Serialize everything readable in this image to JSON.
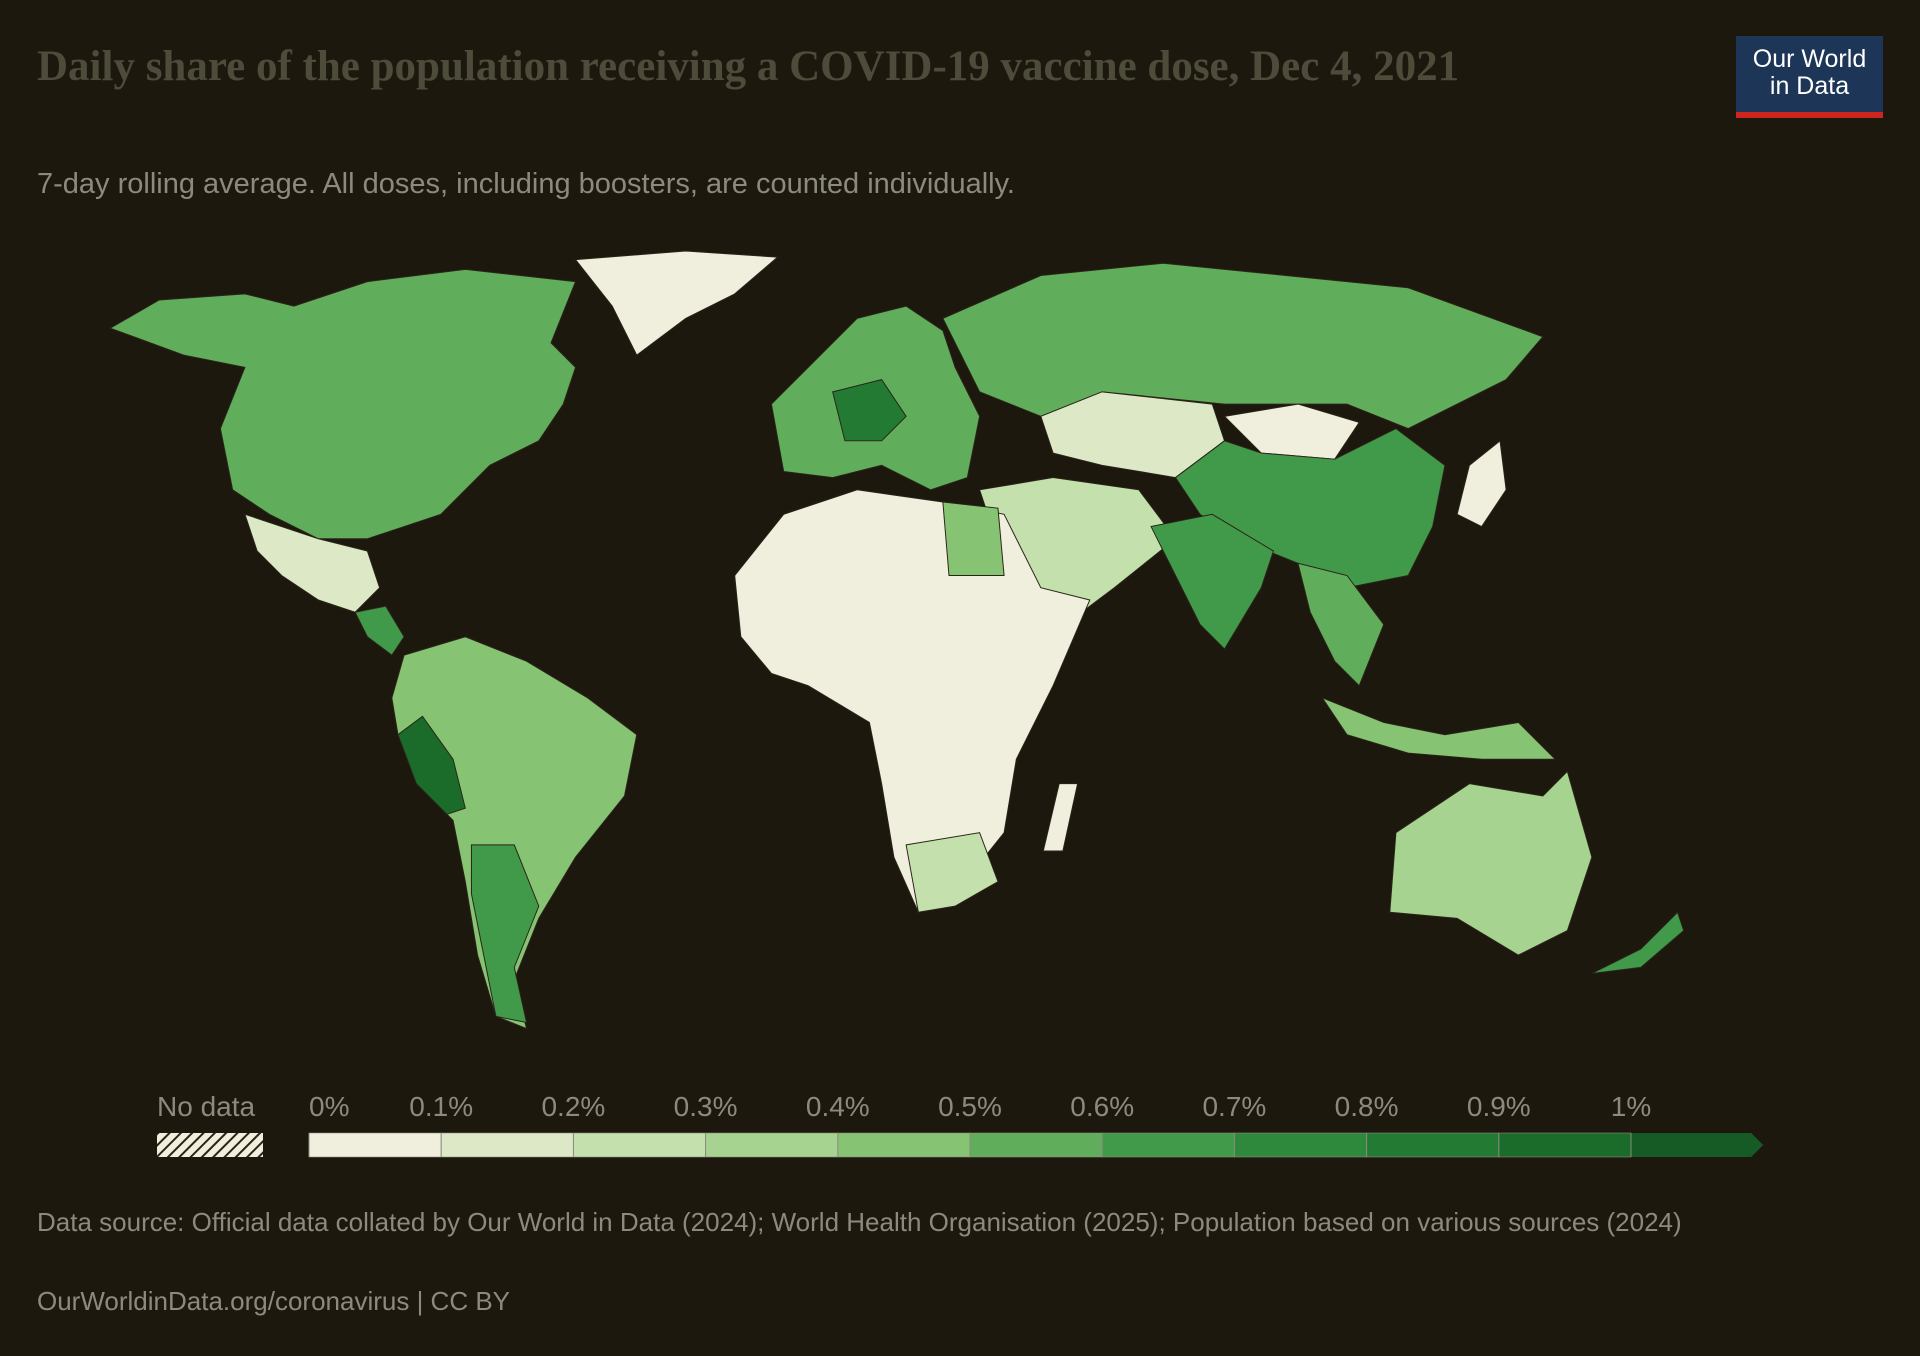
{
  "title": "Daily share of the population receiving a COVID-19 vaccine dose, Dec 4, 2021",
  "subtitle": "7-day rolling average. All doses, including boosters, are counted individually.",
  "logo": {
    "line1": "Our World",
    "line2": "in Data"
  },
  "legend": {
    "no_data_label": "No data",
    "ticks": [
      {
        "value": 0,
        "label": "0%"
      },
      {
        "value": 0.1,
        "label": "0.1%"
      },
      {
        "value": 0.2,
        "label": "0.2%"
      },
      {
        "value": 0.3,
        "label": "0.3%"
      },
      {
        "value": 0.4,
        "label": "0.4%"
      },
      {
        "value": 0.5,
        "label": "0.5%"
      },
      {
        "value": 0.6,
        "label": "0.6%"
      },
      {
        "value": 0.7,
        "label": "0.7%"
      },
      {
        "value": 0.8,
        "label": "0.8%"
      },
      {
        "value": 0.9,
        "label": "0.9%"
      },
      {
        "value": 1,
        "label": "1%"
      }
    ],
    "colors": [
      "#f0eedc",
      "#dde8c6",
      "#c4e0ad",
      "#a6d38f",
      "#86c473",
      "#60ae5c",
      "#41994a",
      "#2e893d",
      "#237a33",
      "#1b6b2b",
      "#165b25"
    ]
  },
  "source": "Data source: Official data collated by Our World in Data (2024); World Health Organisation (2025); Population based on various sources (2024)",
  "footer": "OurWorldinData.org/coronavirus | CC BY"
}
